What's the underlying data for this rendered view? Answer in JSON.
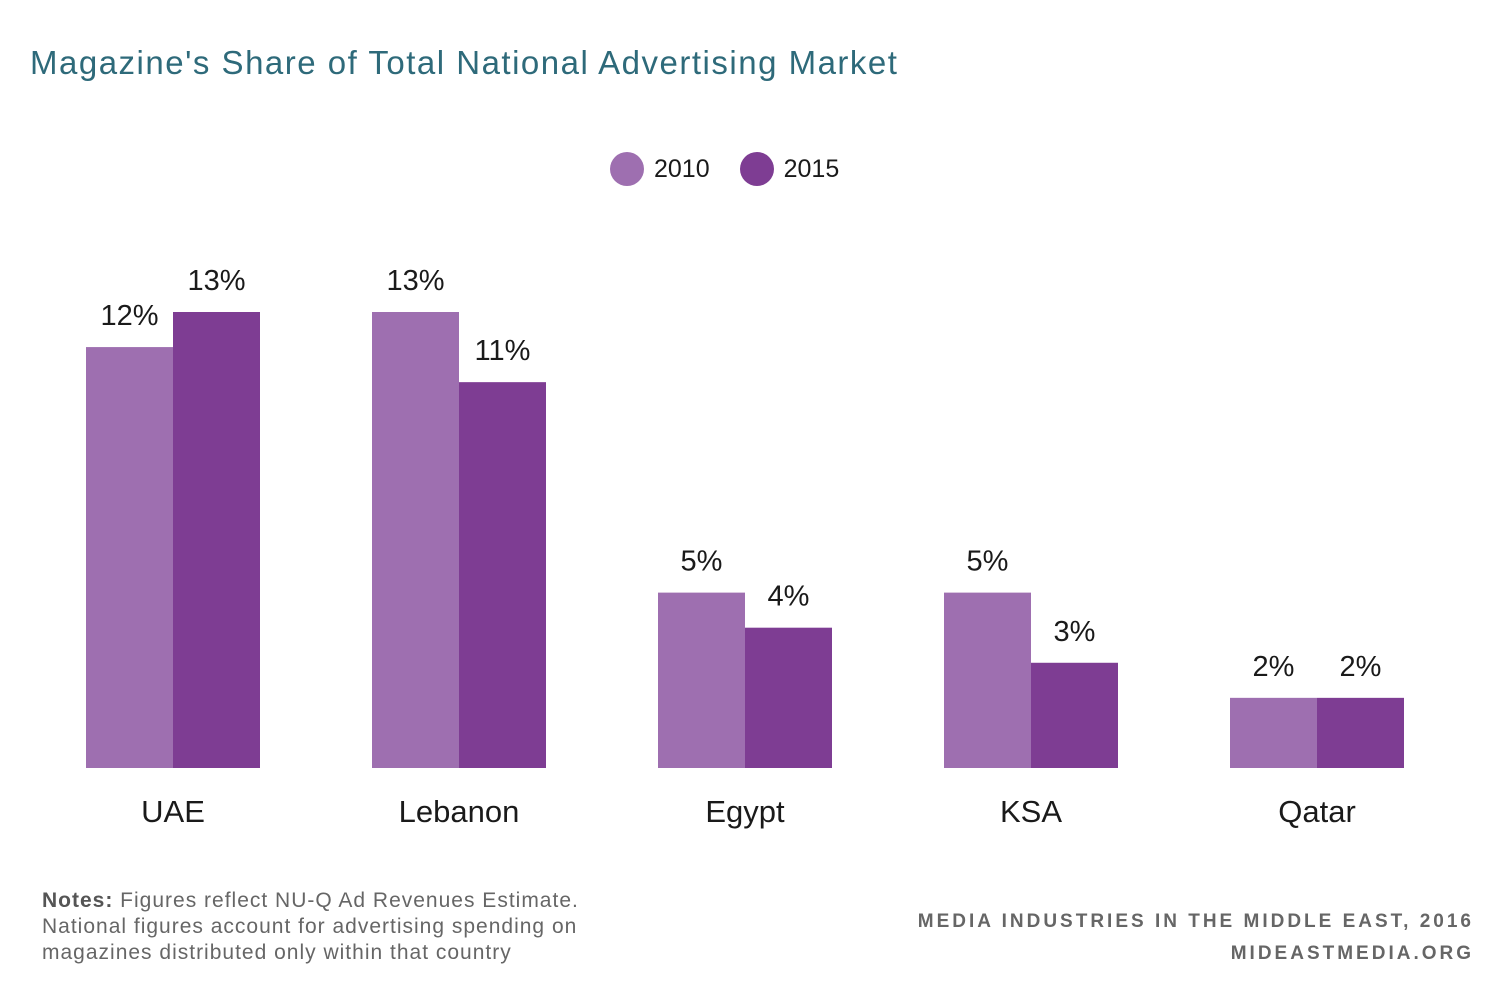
{
  "title": "Magazine's Share of Total National Advertising Market",
  "notes": {
    "label": "Notes:",
    "text": " Figures reflect NU-Q Ad Revenues Estimate. National figures account for advertising spending on magazines distributed only within that country"
  },
  "source": {
    "line1": "MEDIA INDUSTRIES IN THE MIDDLE EAST, 2016",
    "line2": "MIDEASTMEDIA.ORG"
  },
  "colors": {
    "series_2010": "#9e6fb0",
    "series_2015": "#7e3d93",
    "title": "#2e6a7a"
  },
  "chart_data": {
    "type": "bar",
    "title": "Magazine's Share of Total National Advertising Market",
    "categories": [
      "UAE",
      "Lebanon",
      "Egypt",
      "KSA",
      "Qatar"
    ],
    "series": [
      {
        "name": "2010",
        "values": [
          12,
          13,
          5,
          5,
          2
        ],
        "labels": [
          "12%",
          "13%",
          "5%",
          "5%",
          "2%"
        ]
      },
      {
        "name": "2015",
        "values": [
          13,
          11,
          4,
          3,
          2
        ],
        "labels": [
          "13%",
          "11%",
          "4%",
          "3%",
          "2%"
        ]
      }
    ],
    "xlabel": "",
    "ylabel": "",
    "ylim": [
      0,
      13
    ],
    "grid": false,
    "legend_position": "top-center",
    "value_unit": "%"
  }
}
